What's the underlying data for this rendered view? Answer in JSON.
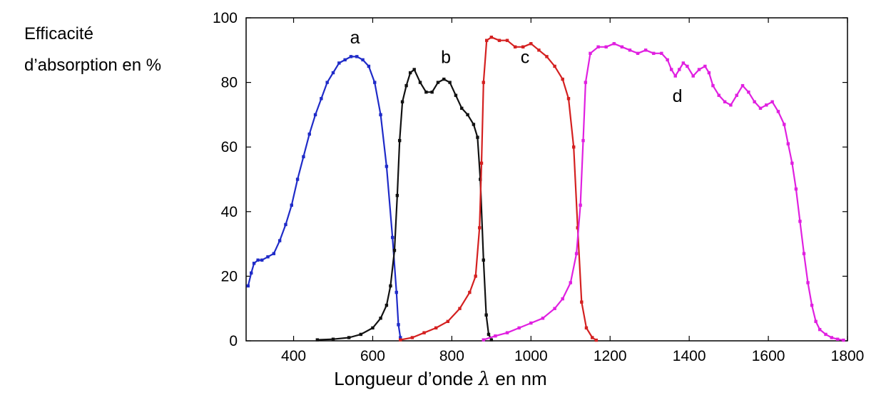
{
  "chart_data": {
    "type": "line",
    "xlabel_text": "Longueur d’onde ",
    "xlabel_symbol": "λ",
    "xlabel_unit": " en nm",
    "ylabel_lines": [
      "Efficacité",
      "d’absorption en %"
    ],
    "xlim": [
      280,
      1800
    ],
    "ylim": [
      0,
      100
    ],
    "x_ticks": [
      400,
      600,
      800,
      1000,
      1200,
      1400,
      1600,
      1800
    ],
    "y_ticks": [
      0,
      20,
      40,
      60,
      80,
      100
    ],
    "grid": false,
    "series": [
      {
        "name": "a",
        "color": "#1f2bc8",
        "points": [
          [
            285,
            17
          ],
          [
            293,
            21
          ],
          [
            300,
            24
          ],
          [
            310,
            25
          ],
          [
            320,
            25
          ],
          [
            335,
            26
          ],
          [
            350,
            27
          ],
          [
            365,
            31
          ],
          [
            380,
            36
          ],
          [
            395,
            42
          ],
          [
            410,
            50
          ],
          [
            425,
            57
          ],
          [
            440,
            64
          ],
          [
            455,
            70
          ],
          [
            470,
            75
          ],
          [
            485,
            80
          ],
          [
            500,
            83
          ],
          [
            515,
            86
          ],
          [
            530,
            87
          ],
          [
            545,
            88
          ],
          [
            560,
            88
          ],
          [
            575,
            87
          ],
          [
            590,
            85
          ],
          [
            605,
            80
          ],
          [
            620,
            70
          ],
          [
            635,
            54
          ],
          [
            650,
            32
          ],
          [
            660,
            15
          ],
          [
            665,
            5
          ],
          [
            670,
            1
          ]
        ]
      },
      {
        "name": "b",
        "color": "#111111",
        "points": [
          [
            460,
            0.3
          ],
          [
            500,
            0.5
          ],
          [
            540,
            1
          ],
          [
            570,
            2
          ],
          [
            600,
            4
          ],
          [
            620,
            7
          ],
          [
            635,
            11
          ],
          [
            645,
            17
          ],
          [
            655,
            28
          ],
          [
            662,
            45
          ],
          [
            668,
            62
          ],
          [
            675,
            74
          ],
          [
            685,
            79
          ],
          [
            695,
            83
          ],
          [
            705,
            84
          ],
          [
            720,
            80
          ],
          [
            735,
            77
          ],
          [
            750,
            77
          ],
          [
            765,
            80
          ],
          [
            780,
            81
          ],
          [
            795,
            80
          ],
          [
            810,
            76
          ],
          [
            825,
            72
          ],
          [
            840,
            70
          ],
          [
            855,
            67
          ],
          [
            865,
            63
          ],
          [
            872,
            50
          ],
          [
            880,
            25
          ],
          [
            887,
            8
          ],
          [
            893,
            2
          ],
          [
            900,
            0.3
          ]
        ]
      },
      {
        "name": "c",
        "color": "#d42020",
        "points": [
          [
            670,
            0.3
          ],
          [
            700,
            1
          ],
          [
            730,
            2.5
          ],
          [
            760,
            4
          ],
          [
            790,
            6
          ],
          [
            820,
            10
          ],
          [
            845,
            15
          ],
          [
            860,
            20
          ],
          [
            870,
            35
          ],
          [
            875,
            55
          ],
          [
            880,
            80
          ],
          [
            888,
            93
          ],
          [
            900,
            94
          ],
          [
            920,
            93
          ],
          [
            940,
            93
          ],
          [
            960,
            91
          ],
          [
            980,
            91
          ],
          [
            1000,
            92
          ],
          [
            1020,
            90
          ],
          [
            1040,
            88
          ],
          [
            1060,
            85
          ],
          [
            1080,
            81
          ],
          [
            1095,
            75
          ],
          [
            1108,
            60
          ],
          [
            1118,
            35
          ],
          [
            1128,
            12
          ],
          [
            1140,
            4
          ],
          [
            1155,
            1
          ],
          [
            1165,
            0.2
          ]
        ]
      },
      {
        "name": "d",
        "color": "#e020e0",
        "points": [
          [
            880,
            0.3
          ],
          [
            910,
            1.5
          ],
          [
            940,
            2.5
          ],
          [
            970,
            4
          ],
          [
            1000,
            5.5
          ],
          [
            1030,
            7
          ],
          [
            1060,
            10
          ],
          [
            1080,
            13
          ],
          [
            1100,
            18
          ],
          [
            1115,
            27
          ],
          [
            1125,
            42
          ],
          [
            1132,
            62
          ],
          [
            1138,
            80
          ],
          [
            1150,
            89
          ],
          [
            1170,
            91
          ],
          [
            1190,
            91
          ],
          [
            1210,
            92
          ],
          [
            1230,
            91
          ],
          [
            1250,
            90
          ],
          [
            1270,
            89
          ],
          [
            1290,
            90
          ],
          [
            1310,
            89
          ],
          [
            1330,
            89
          ],
          [
            1345,
            87
          ],
          [
            1355,
            84
          ],
          [
            1365,
            82
          ],
          [
            1375,
            84
          ],
          [
            1385,
            86
          ],
          [
            1395,
            85
          ],
          [
            1410,
            82
          ],
          [
            1425,
            84
          ],
          [
            1440,
            85
          ],
          [
            1450,
            83
          ],
          [
            1460,
            79
          ],
          [
            1475,
            76
          ],
          [
            1490,
            74
          ],
          [
            1505,
            73
          ],
          [
            1520,
            76
          ],
          [
            1535,
            79
          ],
          [
            1550,
            77
          ],
          [
            1565,
            74
          ],
          [
            1580,
            72
          ],
          [
            1595,
            73
          ],
          [
            1610,
            74
          ],
          [
            1625,
            71
          ],
          [
            1640,
            67
          ],
          [
            1650,
            61
          ],
          [
            1660,
            55
          ],
          [
            1670,
            47
          ],
          [
            1680,
            37
          ],
          [
            1690,
            27
          ],
          [
            1700,
            18
          ],
          [
            1710,
            11
          ],
          [
            1720,
            6
          ],
          [
            1730,
            3.5
          ],
          [
            1745,
            2
          ],
          [
            1760,
            1
          ],
          [
            1775,
            0.5
          ],
          [
            1790,
            0.2
          ]
        ]
      }
    ],
    "curve_labels": [
      {
        "text": "a",
        "x": 555,
        "y": 92
      },
      {
        "text": "b",
        "x": 785,
        "y": 86
      },
      {
        "text": "c",
        "x": 985,
        "y": 86
      },
      {
        "text": "d",
        "x": 1370,
        "y": 74
      }
    ]
  }
}
